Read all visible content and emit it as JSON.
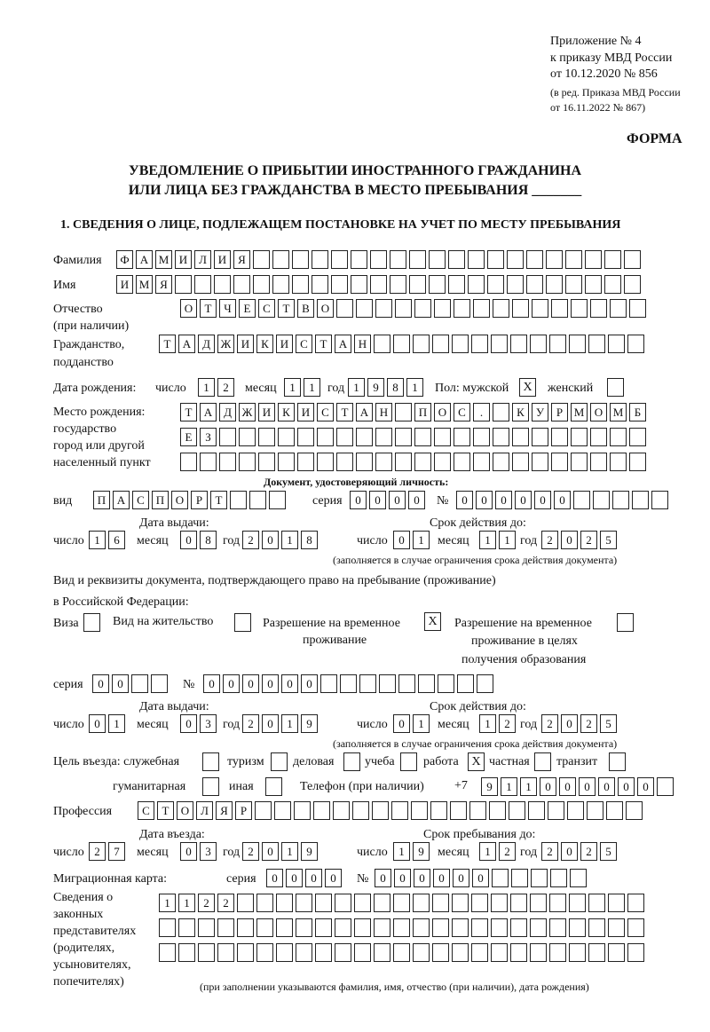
{
  "header": {
    "appendix": "Приложение № 4",
    "order": "к приказу МВД России",
    "order_date": "от 10.12.2020 № 856",
    "edition1": "(в ред. Приказа МВД России",
    "edition2": "от 16.11.2022 № 867)",
    "form_label": "ФОРМА"
  },
  "title": {
    "line1": "УВЕДОМЛЕНИЕ О ПРИБЫТИИ ИНОСТРАННОГО ГРАЖДАНИНА",
    "line2": "ИЛИ ЛИЦА БЕЗ ГРАЖДАНСТВА В МЕСТО ПРЕБЫВАНИЯ _______"
  },
  "section1": {
    "title": "1. СВЕДЕНИЯ О ЛИЦЕ, ПОДЛЕЖАЩЕМ ПОСТАНОВКЕ НА УЧЕТ ПО МЕСТУ ПРЕБЫВАНИЯ",
    "surname_label": "Фамилия",
    "surname": "ФАМИЛИЯ",
    "name_label": "Имя",
    "name": "ИМЯ",
    "patronymic_label1": "Отчество",
    "patronymic_label2": "(при наличии)",
    "patronymic": "ОТЧЕСТВО",
    "citizenship_label1": "Гражданство,",
    "citizenship_label2": "подданство",
    "citizenship": "ТАДЖИКИСТАН",
    "birth": {
      "label": "Дата рождения:",
      "day_label": "число",
      "day": "12",
      "month_label": "месяц",
      "month": "11",
      "year_label": "год",
      "year": "1981",
      "sex_label": "Пол: мужской",
      "male": "X",
      "female_label": "женский",
      "female": ""
    },
    "birthplace": {
      "label1": "Место рождения:",
      "label2": "государство",
      "label3": "город или другой",
      "label4": "населенный пункт",
      "line1": "ТАДЖИКИСТАН ПОС. КУРМОМБ",
      "line2": "ЕЗ",
      "line3": ""
    },
    "id_doc": {
      "heading": "Документ, удостоверяющий личность:",
      "type_label": "вид",
      "type": "ПАСПОРТ",
      "series_label": "серия",
      "series": "0000",
      "number_label": "№",
      "number": "000000",
      "issue_label": "Дата выдачи:",
      "expiry_label": "Срок действия до:",
      "issue": {
        "day_label": "число",
        "day": "16",
        "month_label": "месяц",
        "month": "08",
        "year_label": "год",
        "year": "2018"
      },
      "expiry": {
        "day_label": "число",
        "day": "01",
        "month_label": "месяц",
        "month": "11",
        "year_label": "год",
        "year": "2025"
      },
      "note": "(заполняется в случае ограничения срока действия документа)"
    },
    "stay_doc": {
      "label1": "Вид и реквизиты документа, подтверждающего право на пребывание (проживание)",
      "label2": "в Российской Федерации:",
      "visa_label": "Виза",
      "visa": "",
      "residence_label": "Вид на жительство",
      "residence": "",
      "temp_label1": "Разрешение на временное",
      "temp_label2": "проживание",
      "temp": "X",
      "edu_label1": "Разрешение на временное",
      "edu_label2": "проживание в целях",
      "edu_label3": "получения образования",
      "edu": "",
      "series_label": "серия",
      "series": "00",
      "number_label": "№",
      "number": "000000",
      "issue_label": "Дата выдачи:",
      "expiry_label": "Срок действия до:",
      "issue": {
        "day_label": "число",
        "day": "01",
        "month_label": "месяц",
        "month": "03",
        "year_label": "год",
        "year": "2019"
      },
      "expiry": {
        "day_label": "число",
        "day": "01",
        "month_label": "месяц",
        "month": "12",
        "year_label": "год",
        "year": "2025"
      },
      "note": "(заполняется в случае ограничения срока действия документа)"
    },
    "purpose": {
      "label": "Цель въезда: служебная",
      "official": "",
      "tourism_label": "туризм",
      "tourism": "",
      "business_label": "деловая",
      "business": "",
      "study_label": "учеба",
      "study": "",
      "work_label": "работа",
      "work": "X",
      "private_label": "частная",
      "private": "",
      "transit_label": "транзит",
      "transit": "",
      "humanitarian_label": "гуманитарная",
      "humanitarian": "",
      "other_label": "иная",
      "other": ""
    },
    "phone_label": "Телефон (при наличии)",
    "phone_prefix": "+7",
    "phone": "911000000",
    "profession_label": "Профессия",
    "profession": "СТОЛЯР",
    "entry": {
      "entry_label": "Дата въезда:",
      "stay_label": "Срок пребывания до:",
      "date": {
        "day_label": "число",
        "day": "27",
        "month_label": "месяц",
        "month": "03",
        "year_label": "год",
        "year": "2019"
      },
      "until": {
        "day_label": "число",
        "day": "19",
        "month_label": "месяц",
        "month": "12",
        "year_label": "год",
        "year": "2025"
      }
    },
    "migration_card": {
      "label": "Миграционная карта:",
      "series_label": "серия",
      "series": "0000",
      "number_label": "№",
      "number": "000000"
    },
    "representatives": {
      "label1": "Сведения о",
      "label2": "законных",
      "label3": "представителях",
      "label4": "(родителях,",
      "label5": "усыновителях,",
      "label6": "попечителях)",
      "line1": "1122",
      "line2": "",
      "line3": "",
      "note": "(при заполнении указываются фамилия, имя, отчество (при наличии), дата рождения)"
    }
  }
}
